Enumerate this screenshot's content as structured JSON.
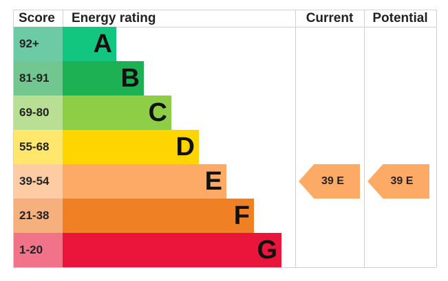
{
  "header": {
    "score": "Score",
    "rating": "Energy rating",
    "current": "Current",
    "potential": "Potential"
  },
  "rows": [
    {
      "score": "92+",
      "letter": "A",
      "color": "#12c67f",
      "score_color": "#6ccba5"
    },
    {
      "score": "81-91",
      "letter": "B",
      "color": "#1db154",
      "score_color": "#72c68f"
    },
    {
      "score": "69-80",
      "letter": "C",
      "color": "#8dce46",
      "score_color": "#b8df93"
    },
    {
      "score": "55-68",
      "letter": "D",
      "color": "#ffd500",
      "score_color": "#ffe66d"
    },
    {
      "score": "39-54",
      "letter": "E",
      "color": "#fcaa65",
      "score_color": "#fdcca4"
    },
    {
      "score": "21-38",
      "letter": "F",
      "color": "#ef8023",
      "score_color": "#f5b07e"
    },
    {
      "score": "1-20",
      "letter": "G",
      "color": "#e9153b",
      "score_color": "#f1738a"
    }
  ],
  "current": {
    "label": "39 E",
    "color": "#fcaa65"
  },
  "potential": {
    "label": "39 E",
    "color": "#fcaa65"
  }
}
